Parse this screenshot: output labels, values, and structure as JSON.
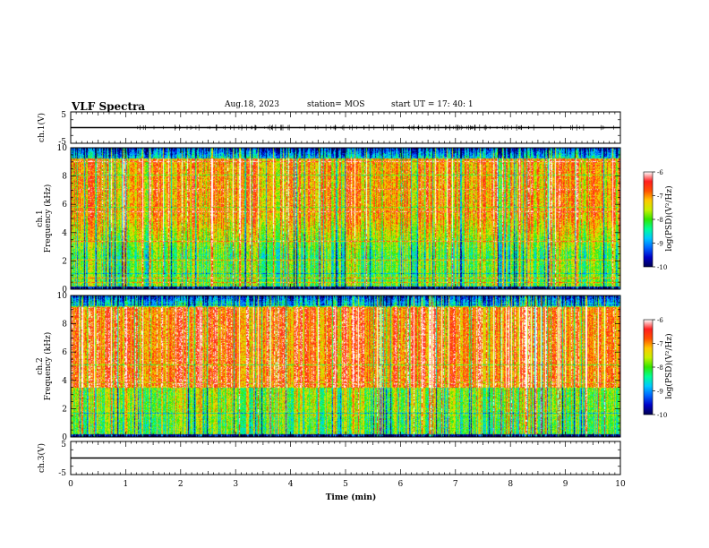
{
  "header": {
    "title": "VLF Spectra",
    "date": "Aug.18, 2023",
    "station": "station= MOS",
    "start": "start  UT =   17: 40: 1"
  },
  "chart_data": [
    {
      "type": "line",
      "panel": "ch1-waveform",
      "ylabel": "ch.1(V)",
      "ylim": [
        -5,
        5
      ],
      "yticks": [
        "5",
        "-5"
      ],
      "xlim": [
        0,
        10
      ],
      "baseline_value": 0
    },
    {
      "type": "heatmap",
      "panel": "ch1-spectrogram",
      "ylabel": "ch.1\nFrequency (kHz)",
      "ylabel_line1": "ch.1",
      "ylabel_line2": "Frequency (kHz)",
      "ylim": [
        0,
        10
      ],
      "yticks": [
        "0",
        "2",
        "4",
        "6",
        "8",
        "10"
      ],
      "xlim": [
        0,
        10
      ],
      "colorbar": {
        "label": "log(PSD)(V²/Hz)",
        "range": [
          -10,
          -6
        ],
        "ticks": [
          "-6",
          "-7",
          "-8",
          "-9",
          "-10"
        ]
      }
    },
    {
      "type": "heatmap",
      "panel": "ch2-spectrogram",
      "ylabel": "ch.2\nFrequency (kHz)",
      "ylabel_line1": "ch.2",
      "ylabel_line2": "Frequency (kHz)",
      "ylim": [
        0,
        10
      ],
      "yticks": [
        "0",
        "2",
        "4",
        "6",
        "8",
        "10"
      ],
      "xlim": [
        0,
        10
      ],
      "colorbar": {
        "label": "log(PSD)(V²/Hz)",
        "range": [
          -10,
          -6
        ],
        "ticks": [
          "-6",
          "-7",
          "-8",
          "-9",
          "-10"
        ]
      }
    },
    {
      "type": "line",
      "panel": "ch3-waveform",
      "ylabel": "ch.3(V)",
      "ylim": [
        -5,
        5
      ],
      "yticks": [
        "5",
        "-5"
      ],
      "xlim": [
        0,
        10
      ],
      "baseline_value": 0
    }
  ],
  "xaxis": {
    "label": "Time (min)",
    "ticks": [
      "0",
      "1",
      "2",
      "3",
      "4",
      "5",
      "6",
      "7",
      "8",
      "9",
      "10"
    ]
  },
  "colors": {
    "colormap": [
      "#000050",
      "#0000c8",
      "#0064ff",
      "#00c8ff",
      "#00ff96",
      "#32e600",
      "#c8f000",
      "#ffc800",
      "#ff5000",
      "#ff1e1e",
      "#ffffff"
    ]
  }
}
